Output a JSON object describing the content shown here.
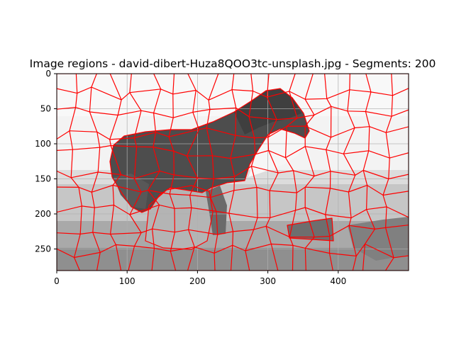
{
  "figure": {
    "title": "Image regions - david-dibert-Huza8QOO3tc-unsplash.jpg - Segments: 200"
  },
  "axes": {
    "x_ticks": [
      "0",
      "100",
      "200",
      "300",
      "400"
    ],
    "y_ticks": [
      "0",
      "50",
      "100",
      "150",
      "200",
      "250"
    ]
  },
  "chart_data": {
    "type": "heatmap",
    "title": "Image regions - david-dibert-Huza8QOO3tc-unsplash.jpg - Segments: 200",
    "xlim": [
      0,
      500
    ],
    "ylim": [
      281,
      0
    ],
    "x_ticks": [
      0,
      100,
      200,
      300,
      400
    ],
    "y_ticks": [
      0,
      50,
      100,
      150,
      200,
      250
    ],
    "grid": true,
    "segments": 200,
    "boundary_color": "#ff0000"
  },
  "colors": {
    "boundary": "#ff0000",
    "grid": "#b0b0b0",
    "sky": "#f2f2f2",
    "ground_light": "#c4c4c4",
    "ground_mid": "#a8a8a8",
    "ground_dark": "#8c8c8c",
    "animal": "#4a4a4a"
  }
}
